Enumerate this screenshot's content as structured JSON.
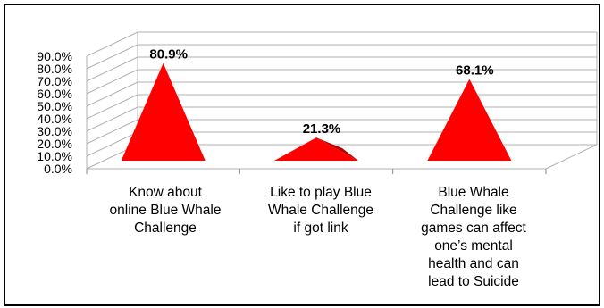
{
  "chart_data": {
    "type": "bar",
    "style": "3d-pyramid",
    "categories": [
      "Know about\nonline Blue Whale\nChallenge",
      "Like to play Blue\nWhale Challenge\nif  got link",
      "Blue Whale\nChallenge like\ngames can affect\none’s mental\nhealth and can\nlead to Suicide"
    ],
    "values": [
      80.9,
      21.3,
      68.1
    ],
    "data_labels": [
      "80.9%",
      "21.3%",
      "68.1%"
    ],
    "y_ticks": [
      "0.0%",
      "10.0%",
      "20.0%",
      "30.0%",
      "40.0%",
      "50.0%",
      "60.0%",
      "70.0%",
      "80.0%",
      "90.0%"
    ],
    "ylim": [
      0,
      90
    ],
    "grid": true,
    "legend": "none",
    "title": "",
    "xlabel": "",
    "ylabel": "",
    "colors": {
      "face": "#ff0000",
      "side": "#b30000",
      "grid": "#b0b0b0"
    }
  }
}
